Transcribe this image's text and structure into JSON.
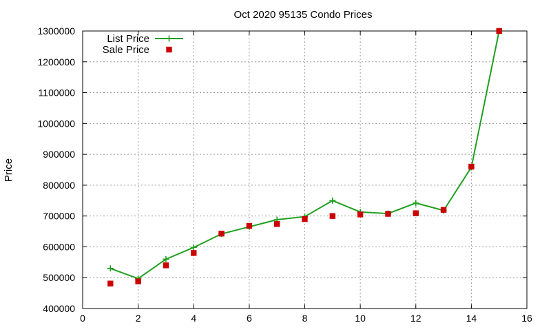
{
  "chart_data": {
    "type": "line",
    "title": "Oct 2020 95135 Condo Prices",
    "xlabel": "",
    "ylabel": "Price",
    "xlim": [
      0,
      16
    ],
    "ylim": [
      400000,
      1300000
    ],
    "x_ticks": [
      0,
      2,
      4,
      6,
      8,
      10,
      12,
      14,
      16
    ],
    "y_ticks": [
      400000,
      500000,
      600000,
      700000,
      800000,
      900000,
      1000000,
      1100000,
      1200000,
      1300000
    ],
    "grid": true,
    "legend_position": "top-left",
    "series": [
      {
        "name": "List Price",
        "type": "line",
        "marker": "plus",
        "color": "#1f9f1f",
        "x": [
          1,
          2,
          3,
          4,
          5,
          6,
          7,
          8,
          9,
          10,
          11,
          12,
          13,
          14,
          15
        ],
        "values": [
          530000,
          497000,
          560000,
          598000,
          642000,
          665000,
          688000,
          698000,
          750000,
          713000,
          708000,
          742000,
          718000,
          858000,
          1300000
        ]
      },
      {
        "name": "Sale Price",
        "type": "scatter",
        "marker": "square",
        "color": "#cc0000",
        "x": [
          1,
          2,
          3,
          4,
          5,
          6,
          7,
          8,
          9,
          10,
          11,
          12,
          13,
          14,
          15
        ],
        "values": [
          481000,
          488000,
          540000,
          580000,
          643000,
          668000,
          674000,
          690000,
          700000,
          705000,
          707000,
          709000,
          720000,
          860000,
          1300000
        ]
      }
    ]
  }
}
